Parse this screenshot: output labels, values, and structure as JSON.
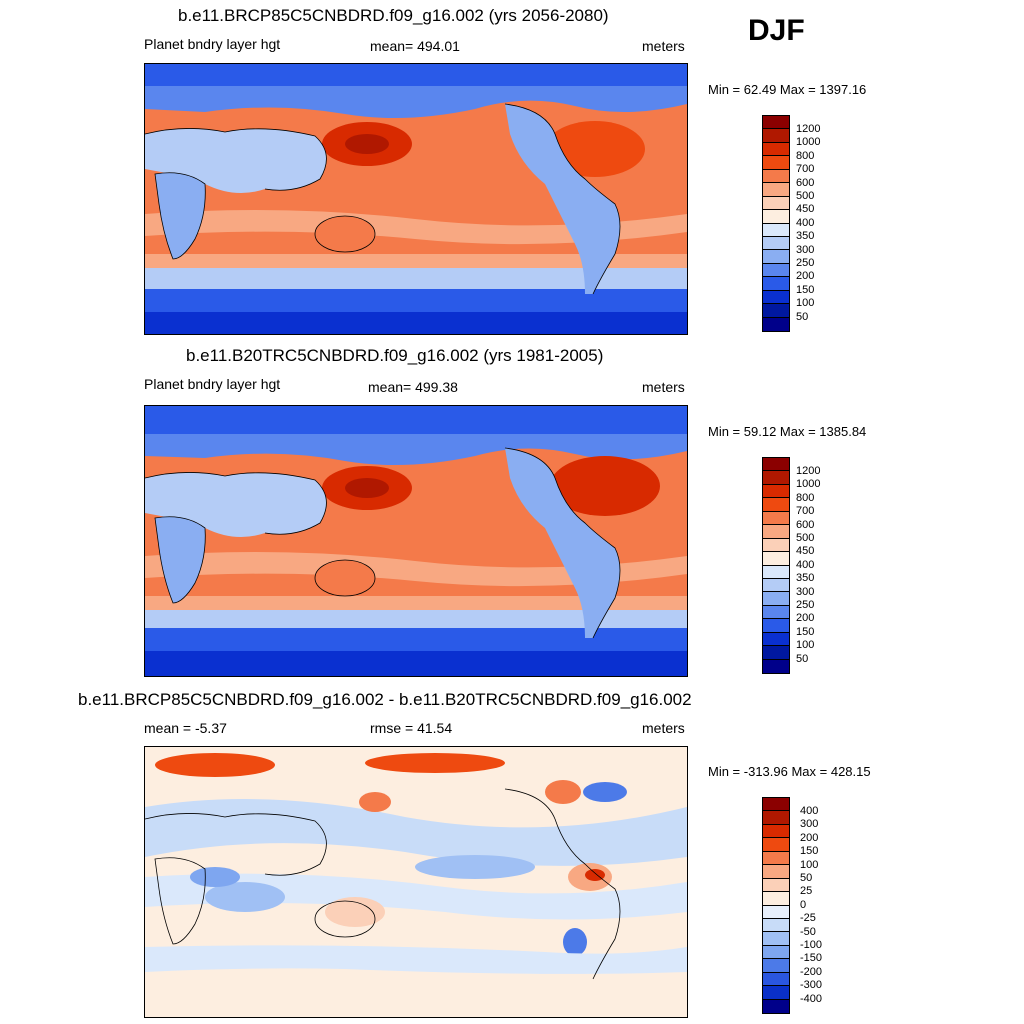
{
  "season": "DJF",
  "panels": [
    {
      "title": "b.e11.BRCP85C5CNBDRD.f09_g16.002 (yrs 2056-2080)",
      "left_label": "Planet bndry layer hgt",
      "center_label": "mean= 494.01",
      "right_label": "meters",
      "minmax": "Min =  62.49 Max = 1397.16",
      "colorbar": [
        "1200",
        "1000",
        "800",
        "700",
        "600",
        "500",
        "450",
        "400",
        "350",
        "300",
        "250",
        "200",
        "150",
        "100",
        "50"
      ]
    },
    {
      "title": "b.e11.B20TRC5CNBDRD.f09_g16.002 (yrs 1981-2005)",
      "left_label": "Planet bndry layer hgt",
      "center_label": "mean= 499.38",
      "right_label": "meters",
      "minmax": "Min =  59.12 Max = 1385.84",
      "colorbar": [
        "1200",
        "1000",
        "800",
        "700",
        "600",
        "500",
        "450",
        "400",
        "350",
        "300",
        "250",
        "200",
        "150",
        "100",
        "50"
      ]
    },
    {
      "title": "b.e11.BRCP85C5CNBDRD.f09_g16.002 - b.e11.B20TRC5CNBDRD.f09_g16.002",
      "left_label": "mean =  -5.37",
      "center_label": "rmse =  41.54",
      "right_label": "meters",
      "minmax": "Min = -313.96 Max = 428.15",
      "colorbar": [
        "400",
        "300",
        "200",
        "150",
        "100",
        "50",
        "25",
        "0",
        "-25",
        "-50",
        "-100",
        "-150",
        "-200",
        "-300",
        "-400"
      ]
    }
  ],
  "colors": {
    "abs_scale": [
      "#8b0000",
      "#b01800",
      "#d82a00",
      "#ee4a10",
      "#f47a4a",
      "#f8a882",
      "#fbd0b8",
      "#fdeee0",
      "#dae8fb",
      "#b4ccf6",
      "#8aaef2",
      "#5a86ee",
      "#2a5ae8",
      "#0a30d0",
      "#0018a0",
      "#00008a"
    ],
    "diff_scale": [
      "#8b0000",
      "#b01800",
      "#d82a00",
      "#ee4a10",
      "#f47a4a",
      "#f8a882",
      "#fbd0b8",
      "#fdeee0",
      "#e8f0fc",
      "#c8dcf8",
      "#a0c0f4",
      "#7ea6f0",
      "#4c7ae8",
      "#2a56e0",
      "#0a30c8",
      "#00008a"
    ]
  }
}
